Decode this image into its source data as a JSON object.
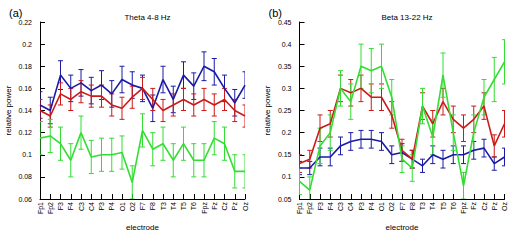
{
  "chart_data": [
    {
      "type": "line",
      "label": "(a)",
      "title": "Theta 4-8 Hz",
      "x_label": "electrode",
      "y_label": "relative power",
      "categories": [
        "Fp1",
        "Fp2",
        "F3",
        "F4",
        "C3",
        "C4",
        "P3",
        "P4",
        "O1",
        "O2",
        "F7",
        "F8",
        "T3",
        "T4",
        "T5",
        "T6",
        "Fpz",
        "Fz",
        "Cz",
        "Pz",
        "Oz"
      ],
      "ylim": [
        0.06,
        0.22
      ],
      "yticks": [
        0.06,
        0.08,
        0.1,
        0.12,
        0.14,
        0.16,
        0.18,
        0.2,
        0.22
      ],
      "grid": false,
      "series": [
        {
          "color": "#1a1aa6",
          "values": [
            0.145,
            0.14,
            0.172,
            0.16,
            0.165,
            0.158,
            0.163,
            0.155,
            0.168,
            0.163,
            0.16,
            0.142,
            0.168,
            0.15,
            0.172,
            0.162,
            0.18,
            0.175,
            0.16,
            0.147,
            0.163
          ],
          "errors": [
            0.012,
            0.012,
            0.013,
            0.012,
            0.012,
            0.012,
            0.013,
            0.012,
            0.012,
            0.012,
            0.012,
            0.012,
            0.012,
            0.012,
            0.012,
            0.012,
            0.013,
            0.012,
            0.012,
            0.012,
            0.012
          ]
        },
        {
          "color": "#cc1a1a",
          "values": [
            0.14,
            0.135,
            0.155,
            0.15,
            0.157,
            0.153,
            0.153,
            0.145,
            0.142,
            0.152,
            0.16,
            0.15,
            0.14,
            0.145,
            0.15,
            0.145,
            0.15,
            0.145,
            0.15,
            0.14,
            0.135
          ],
          "errors": [
            0.01,
            0.01,
            0.01,
            0.01,
            0.01,
            0.01,
            0.01,
            0.01,
            0.01,
            0.01,
            0.01,
            0.01,
            0.01,
            0.01,
            0.01,
            0.01,
            0.01,
            0.01,
            0.01,
            0.01,
            0.01
          ]
        },
        {
          "color": "#33dd33",
          "values": [
            0.115,
            0.117,
            0.11,
            0.095,
            0.12,
            0.098,
            0.1,
            0.1,
            0.102,
            0.075,
            0.122,
            0.105,
            0.11,
            0.095,
            0.11,
            0.095,
            0.095,
            0.115,
            0.11,
            0.085,
            0.085
          ],
          "errors": [
            0.015,
            0.015,
            0.015,
            0.015,
            0.015,
            0.015,
            0.015,
            0.015,
            0.015,
            0.015,
            0.015,
            0.015,
            0.015,
            0.015,
            0.015,
            0.015,
            0.015,
            0.015,
            0.015,
            0.015,
            0.015
          ]
        }
      ]
    },
    {
      "type": "line",
      "label": "(b)",
      "title": "Beta 13-22 Hz",
      "x_label": "electrode",
      "y_label": "relative power",
      "categories": [
        "Fp1",
        "Fp2",
        "F3",
        "F4",
        "C3",
        "C4",
        "P3",
        "P4",
        "O1",
        "O2",
        "F7",
        "F8",
        "T3",
        "T4",
        "T5",
        "T6",
        "Fpz",
        "Fz",
        "Cz",
        "Pz",
        "Oz"
      ],
      "ylim": [
        0.05,
        0.45
      ],
      "yticks": [
        0.05,
        0.1,
        0.15,
        0.2,
        0.25,
        0.3,
        0.35,
        0.4,
        0.45
      ],
      "grid": false,
      "series": [
        {
          "color": "#1a1aa6",
          "values": [
            0.12,
            0.12,
            0.145,
            0.145,
            0.17,
            0.18,
            0.185,
            0.185,
            0.18,
            0.15,
            0.155,
            0.14,
            0.125,
            0.15,
            0.14,
            0.15,
            0.15,
            0.16,
            0.165,
            0.13,
            0.145
          ],
          "errors": [
            0.015,
            0.015,
            0.02,
            0.02,
            0.02,
            0.02,
            0.02,
            0.02,
            0.02,
            0.02,
            0.02,
            0.02,
            0.015,
            0.02,
            0.02,
            0.02,
            0.02,
            0.02,
            0.02,
            0.015,
            0.02
          ]
        },
        {
          "color": "#cc1a1a",
          "values": [
            0.13,
            0.14,
            0.21,
            0.22,
            0.3,
            0.29,
            0.3,
            0.28,
            0.28,
            0.24,
            0.16,
            0.14,
            0.26,
            0.22,
            0.27,
            0.23,
            0.21,
            0.23,
            0.26,
            0.17,
            0.22
          ],
          "errors": [
            0.02,
            0.02,
            0.03,
            0.03,
            0.03,
            0.03,
            0.03,
            0.03,
            0.03,
            0.03,
            0.025,
            0.02,
            0.03,
            0.03,
            0.03,
            0.03,
            0.03,
            0.03,
            0.03,
            0.025,
            0.03
          ]
        },
        {
          "color": "#33dd33",
          "values": [
            0.09,
            0.07,
            0.17,
            0.2,
            0.3,
            0.27,
            0.35,
            0.34,
            0.35,
            0.28,
            0.14,
            0.12,
            0.26,
            0.19,
            0.33,
            0.2,
            0.08,
            0.2,
            0.28,
            0.32,
            0.36
          ],
          "errors": [
            0.03,
            0.03,
            0.04,
            0.04,
            0.04,
            0.04,
            0.05,
            0.05,
            0.05,
            0.04,
            0.03,
            0.03,
            0.04,
            0.04,
            0.05,
            0.04,
            0.03,
            0.04,
            0.04,
            0.05,
            0.05
          ]
        }
      ]
    }
  ]
}
